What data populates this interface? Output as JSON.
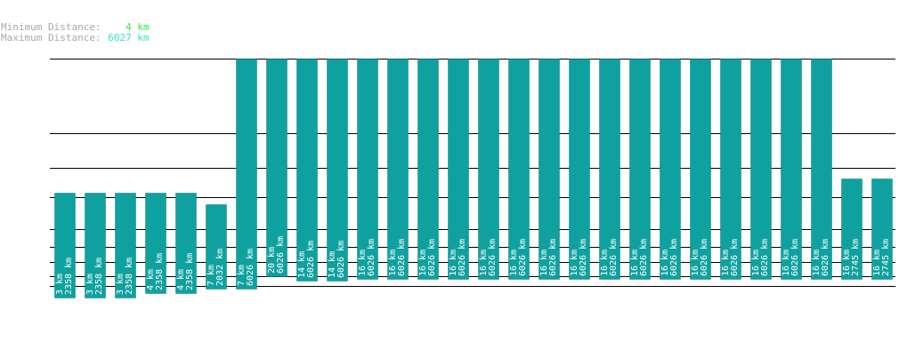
{
  "header": {
    "min_label": "Minimum Distance:",
    "min_value": "4 km",
    "max_label": "Maximum Distance:",
    "max_value": "6027 km"
  },
  "colors": {
    "bar": "#0fa19f",
    "bar_stroke": "#0b7f7d",
    "gridline": "#000000",
    "bar_text": "#ffffff",
    "min_value": "#33ee33",
    "max_value": "#33dddd",
    "header_label": "#a8a8a8"
  },
  "chart_data": {
    "type": "bar",
    "bars": [
      {
        "label1": "3 km",
        "label2": "2358 km",
        "value": 2358
      },
      {
        "label1": "3 km",
        "label2": "2358 km",
        "value": 2358
      },
      {
        "label1": "3 km",
        "label2": "2358 km",
        "value": 2358
      },
      {
        "label1": "4 km",
        "label2": "2358 km",
        "value": 2358
      },
      {
        "label1": "4 km",
        "label2": "2358 km",
        "value": 2358
      },
      {
        "label1": "7 km",
        "label2": "2032 km",
        "value": 2032
      },
      {
        "label1": "7 km",
        "label2": "6026 km",
        "value": 6026
      },
      {
        "label1": "20 km",
        "label2": "6026 km",
        "value": 6026
      },
      {
        "label1": "14 km",
        "label2": "6026 km",
        "value": 6026
      },
      {
        "label1": "14 km",
        "label2": "6026 km",
        "value": 6026
      },
      {
        "label1": "16 km",
        "label2": "6026 km",
        "value": 6026
      },
      {
        "label1": "16 km",
        "label2": "6026 km",
        "value": 6026
      },
      {
        "label1": "16 km",
        "label2": "6026 km",
        "value": 6026
      },
      {
        "label1": "16 km",
        "label2": "6026 km",
        "value": 6026
      },
      {
        "label1": "16 km",
        "label2": "6026 km",
        "value": 6026
      },
      {
        "label1": "16 km",
        "label2": "6026 km",
        "value": 6026
      },
      {
        "label1": "16 km",
        "label2": "6026 km",
        "value": 6026
      },
      {
        "label1": "16 km",
        "label2": "6026 km",
        "value": 6026
      },
      {
        "label1": "16 km",
        "label2": "6026 km",
        "value": 6026
      },
      {
        "label1": "16 km",
        "label2": "6026 km",
        "value": 6026
      },
      {
        "label1": "16 km",
        "label2": "6026 km",
        "value": 6026
      },
      {
        "label1": "16 km",
        "label2": "6026 km",
        "value": 6026
      },
      {
        "label1": "16 km",
        "label2": "6026 km",
        "value": 6026
      },
      {
        "label1": "16 km",
        "label2": "6026 km",
        "value": 6026
      },
      {
        "label1": "16 km",
        "label2": "6026 km",
        "value": 6026
      },
      {
        "label1": "16 km",
        "label2": "6026 km",
        "value": 6026
      },
      {
        "label1": "16 km",
        "label2": "2745 km",
        "value": 2745
      },
      {
        "label1": "16 km",
        "label2": "2745 km",
        "value": 2745
      }
    ],
    "bottoms": [
      335,
      335,
      335,
      330,
      330,
      325,
      325,
      311,
      316,
      316,
      314,
      314,
      314,
      314,
      314,
      314,
      314,
      314,
      314,
      314,
      314,
      314,
      314,
      314,
      314,
      314,
      314,
      314
    ],
    "bottoms_note": "Values are in data units; bar bottoms vary per bar as in the original figure.",
    "gridlines": true,
    "xlabel": "",
    "ylabel": "",
    "title": ""
  }
}
